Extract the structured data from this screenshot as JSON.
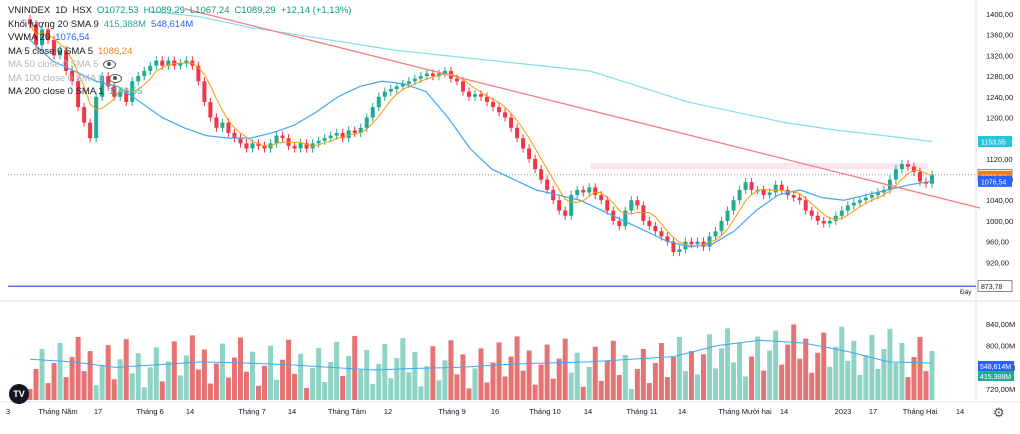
{
  "header": {
    "symbol": "VNINDEX",
    "interval": "1D",
    "exchange": "HSX",
    "open": "O1072,53",
    "high": "H1089,29",
    "low": "L1067,24",
    "close": "C1089,29",
    "change": "+12,14 (+1,13%)"
  },
  "indicators": [
    {
      "label": "Khối lượng 20 SMA 9",
      "value": "415,388M",
      "value2": "548,614M"
    },
    {
      "label": "VWMA 20",
      "value": "1076,54"
    },
    {
      "label": "MA 5 close 0 SMA 5",
      "value": "1086,24"
    },
    {
      "label": "MA 50 close 0 SMA 5",
      "value": ""
    },
    {
      "label": "MA 100 close 0 SMA 5",
      "value": ""
    },
    {
      "label": "MA 200 close 0 SMA 1",
      "value": "1153,55"
    }
  ],
  "price_axis": {
    "ticks": [
      "1400,00",
      "1360,00",
      "1320,00",
      "1280,00",
      "1240,00",
      "1200,00",
      "1160,00",
      "1120,00",
      "1080,00",
      "1040,00",
      "1000,00",
      "960,00",
      "920,00",
      "880,00"
    ],
    "labels": [
      {
        "text": "1153,55",
        "value": 1153.55,
        "color": "#26c6da"
      },
      {
        "text": "1089,29",
        "value": 1089.29,
        "color": "#ffffff",
        "textColor": "#131722"
      },
      {
        "text": "1086,24",
        "value": 1086.24,
        "color": "#f57f17"
      },
      {
        "text": "1076,54",
        "value": 1076.54,
        "color": "#2962ff"
      },
      {
        "text": "873,78",
        "value": 873.78,
        "color": "#ffffff",
        "textColor": "#131722"
      }
    ],
    "day_label": "Đáy"
  },
  "volume_axis": {
    "ticks": [
      "840,00M",
      "800,00M",
      "760,00M",
      "720,00M"
    ],
    "labels": [
      {
        "text": "548,614M",
        "value": 548.614,
        "color": "#2962ff"
      },
      {
        "text": "415,388M",
        "value": 415.388,
        "color": "#22ab94"
      }
    ]
  },
  "time_axis": [
    "3",
    "Tháng Năm",
    "17",
    "Tháng 6",
    "14",
    "Tháng 7",
    "14",
    "Tháng Tám",
    "12",
    "Tháng 9",
    "16",
    "Tháng 10",
    "14",
    "Tháng 11",
    "14",
    "Tháng Mười hai",
    "14",
    "2023",
    "17",
    "Tháng Hai",
    "14"
  ],
  "colors": {
    "up": "#22ab94",
    "down": "#f23645",
    "ma200": "#80deea",
    "vwma": "#42a5f5",
    "ma5": "#ff9800",
    "trendline": "#f77c80",
    "support": "#2962ff"
  },
  "icons": [
    "eye-icon",
    "tradingview-logo",
    "gear-icon"
  ],
  "chart_data": {
    "type": "candlestick",
    "title": "VNINDEX, 1D, HSX",
    "ylim": [
      873.78,
      1420
    ],
    "x_labels": [
      "3",
      "Tháng Năm",
      "17",
      "Tháng 6",
      "14",
      "Tháng 7",
      "14",
      "Tháng Tám",
      "12",
      "Tháng 9",
      "16",
      "Tháng 10",
      "14",
      "Tháng 11",
      "14",
      "Tháng Mười hai",
      "14",
      "2023",
      "17",
      "Tháng Hai",
      "14"
    ],
    "close": [
      1380,
      1340,
      1370,
      1350,
      1320,
      1330,
      1290,
      1270,
      1220,
      1190,
      1160,
      1240,
      1280,
      1260,
      1240,
      1250,
      1230,
      1270,
      1280,
      1290,
      1300,
      1310,
      1300,
      1310,
      1300,
      1305,
      1310,
      1300,
      1270,
      1230,
      1200,
      1180,
      1190,
      1170,
      1160,
      1150,
      1140,
      1150,
      1145,
      1140,
      1150,
      1165,
      1160,
      1145,
      1140,
      1150,
      1140,
      1150,
      1155,
      1160,
      1165,
      1170,
      1160,
      1175,
      1170,
      1180,
      1200,
      1220,
      1240,
      1250,
      1255,
      1260,
      1265,
      1270,
      1275,
      1280,
      1285,
      1280,
      1285,
      1290,
      1275,
      1270,
      1250,
      1240,
      1245,
      1240,
      1230,
      1220,
      1210,
      1200,
      1180,
      1160,
      1140,
      1120,
      1100,
      1080,
      1060,
      1040,
      1020,
      1010,
      1050,
      1060,
      1055,
      1065,
      1050,
      1040,
      1020,
      1000,
      990,
      1020,
      1040,
      1030,
      1000,
      990,
      980,
      970,
      960,
      940,
      945,
      960,
      955,
      960,
      950,
      970,
      980,
      1000,
      1020,
      1040,
      1060,
      1075,
      1060,
      1060,
      1050,
      1055,
      1070,
      1060,
      1050,
      1045,
      1040,
      1020,
      1010,
      1000,
      995,
      1000,
      1010,
      1020,
      1030,
      1035,
      1040,
      1045,
      1050,
      1055,
      1060,
      1080,
      1100,
      1110,
      1105,
      1095,
      1076,
      1072,
      1089.29
    ],
    "ma200": [
      1405,
      1395,
      1375,
      1360,
      1345,
      1330,
      1320,
      1310,
      1300,
      1290,
      1260,
      1230,
      1210,
      1190,
      1176,
      1165,
      1153.55
    ],
    "vwma20": [
      1350,
      1310,
      1290,
      1270,
      1260,
      1230,
      1200,
      1180,
      1165,
      1160,
      1160,
      1170,
      1185,
      1210,
      1240,
      1260,
      1270,
      1265,
      1250,
      1200,
      1140,
      1100,
      1080,
      1060,
      1050,
      1040,
      1020,
      1000,
      980,
      960,
      950,
      955,
      980,
      1020,
      1050,
      1060,
      1045,
      1040,
      1050,
      1060,
      1070,
      1076.54
    ],
    "ma5_last": 1086.24,
    "trendline": {
      "start": 1410,
      "end": 1025
    },
    "support": 873.78,
    "volume_last": {
      "value": "415,388M",
      "sma": "548,614M"
    },
    "volume_ylim": [
      700,
      880
    ]
  }
}
